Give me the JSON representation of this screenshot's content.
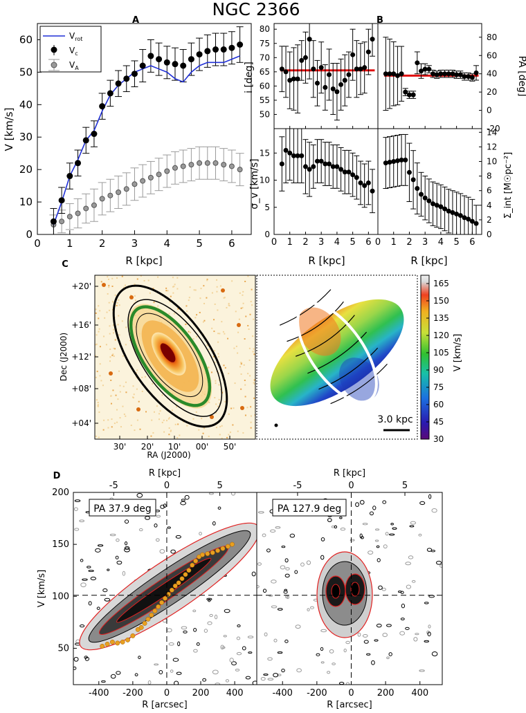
{
  "title": "NGC 2366",
  "panels": {
    "A": {
      "label": "A",
      "xlabel": "R [kpc]",
      "ylabel": "V [km/s]",
      "xlim": [
        0,
        6.6
      ],
      "ylim": [
        0,
        65
      ],
      "xticks": [
        "0",
        "1",
        "2",
        "3",
        "4",
        "5",
        "6"
      ],
      "yticks": [
        "0",
        "10",
        "20",
        "30",
        "40",
        "50",
        "60"
      ],
      "legend": {
        "v_rot": "V",
        "v_rot_sub": "rot",
        "v_c": "V",
        "v_c_sub": "c",
        "v_a": "V",
        "v_a_sub": "A"
      }
    },
    "B": {
      "label": "B",
      "xlabel": "R [kpc]",
      "incl_label": "i [deg]",
      "pa_label": "PA [deg]",
      "sigma_label": "σ_v [km/s]",
      "sigma_int_label": "Σ_int [M☉pc⁻²]",
      "xticks": [
        "0",
        "1",
        "2",
        "3",
        "4",
        "5",
        "6"
      ],
      "incl_yticks": [
        "50",
        "55",
        "60",
        "65",
        "70",
        "75",
        "80"
      ],
      "pa_yticks": [
        "-20",
        "0",
        "20",
        "40",
        "60",
        "80"
      ],
      "sigma_yticks": [
        "0",
        "5",
        "10",
        "15"
      ],
      "sigint_yticks": [
        "0",
        "2",
        "4",
        "6",
        "8",
        "10",
        "12",
        "14"
      ]
    },
    "C": {
      "label": "C",
      "xlabel": "RA (J2000)",
      "ylabel": "Dec (J2000)",
      "ra_ticks": [
        "30'",
        "20'",
        "10'",
        "00'",
        "50'"
      ],
      "dec_ticks": [
        "+20'",
        "+16'",
        "+12'",
        "+08'",
        "+04'"
      ],
      "scalebar": "3.0 kpc",
      "colorbar_label": "V [km/s]",
      "colorbar_ticks": [
        "165",
        "150",
        "135",
        "120",
        "105",
        "90",
        "75",
        "60",
        "45",
        "30"
      ]
    },
    "D": {
      "label": "D",
      "left_title": "PA 37.9 deg",
      "right_title": "PA 127.9 deg",
      "xlabel": "R [arcsec]",
      "top_xlabel": "R [kpc]",
      "ylabel": "V [km/s]",
      "xticks": [
        "-400",
        "-200",
        "0",
        "200",
        "400"
      ],
      "top_ticks": [
        "-5",
        "0",
        "5"
      ],
      "yticks": [
        "50",
        "100",
        "150",
        "200"
      ]
    }
  },
  "chart_data": [
    {
      "type": "line",
      "panel": "A",
      "title": "",
      "xlabel": "R [kpc]",
      "ylabel": "V [km/s]",
      "xlim": [
        0,
        6.6
      ],
      "ylim": [
        0,
        65
      ],
      "series": [
        {
          "name": "V_rot",
          "color": "#1f2fd6",
          "x": [
            0.5,
            0.75,
            1.0,
            1.25,
            1.5,
            1.75,
            2.0,
            2.25,
            2.5,
            2.75,
            3.0,
            3.25,
            3.5,
            3.75,
            4.0,
            4.25,
            4.5,
            4.75,
            5.0,
            5.25,
            5.5,
            5.75,
            6.0,
            6.25
          ],
          "y": [
            3,
            10,
            18,
            23,
            29,
            32,
            38,
            43,
            46,
            48,
            50,
            51,
            52,
            51,
            50,
            48,
            47,
            50,
            52,
            53,
            53,
            53,
            54,
            55
          ]
        },
        {
          "name": "V_c",
          "color": "#000000",
          "x": [
            0.5,
            0.75,
            1.0,
            1.25,
            1.5,
            1.75,
            2.0,
            2.25,
            2.5,
            2.75,
            3.0,
            3.25,
            3.5,
            3.75,
            4.0,
            4.25,
            4.5,
            4.75,
            5.0,
            5.25,
            5.5,
            5.75,
            6.0,
            6.25
          ],
          "y": [
            4,
            10.5,
            18,
            22,
            29,
            31,
            39.5,
            43.5,
            46.5,
            48,
            49.5,
            52,
            55,
            54,
            53,
            52.5,
            52,
            54,
            55.5,
            56.5,
            57,
            57,
            57.5,
            58.5
          ],
          "err": [
            4,
            4,
            4,
            4,
            4,
            4,
            4,
            4,
            4,
            4,
            4,
            5,
            5,
            5,
            5,
            5,
            5,
            5,
            5,
            5,
            5,
            5,
            5,
            5.5
          ]
        },
        {
          "name": "V_A",
          "color": "#9a9a9a",
          "x": [
            0.5,
            0.75,
            1.0,
            1.25,
            1.5,
            1.75,
            2.0,
            2.25,
            2.5,
            2.75,
            3.0,
            3.25,
            3.5,
            3.75,
            4.0,
            4.25,
            4.5,
            4.75,
            5.0,
            5.25,
            5.5,
            5.75,
            6.0,
            6.25
          ],
          "y": [
            3,
            4,
            5.5,
            6.5,
            8,
            9,
            11,
            12,
            13,
            14,
            15.5,
            16.5,
            17.5,
            18.5,
            19.5,
            20.5,
            21,
            21.5,
            22,
            22,
            22,
            21.5,
            21,
            20
          ],
          "err": [
            3,
            3.5,
            4,
            4.5,
            4.5,
            5,
            5,
            5,
            5,
            5,
            5,
            5,
            5,
            5,
            5,
            5,
            5,
            5,
            5,
            5,
            5,
            5,
            5,
            5
          ]
        }
      ]
    },
    {
      "type": "scatter",
      "panel": "B-inclination",
      "ylabel": "i [deg]",
      "xlim": [
        0,
        6.6
      ],
      "ylim": [
        45,
        82
      ],
      "fit_value": 65.5,
      "x": [
        0.5,
        0.75,
        1.0,
        1.25,
        1.5,
        1.75,
        2.0,
        2.25,
        2.5,
        2.75,
        3.0,
        3.25,
        3.5,
        3.75,
        4.0,
        4.25,
        4.5,
        4.75,
        5.0,
        5.25,
        5.5,
        5.75,
        6.0,
        6.25
      ],
      "y": [
        66,
        65,
        62,
        62.5,
        62.5,
        69,
        70,
        76.5,
        66,
        61,
        66.5,
        59.5,
        64,
        59,
        58,
        60.5,
        62,
        64,
        71,
        66,
        66,
        66.5,
        72,
        76.5
      ],
      "err": [
        8,
        9,
        10,
        11,
        12,
        7,
        9,
        14,
        10,
        8,
        9,
        8,
        9,
        9,
        10,
        9,
        9,
        8,
        9,
        10,
        9,
        9,
        8,
        6
      ]
    },
    {
      "type": "scatter",
      "panel": "B-position-angle",
      "ylabel": "PA [deg]",
      "xlim": [
        0,
        6.6
      ],
      "ylim": [
        -20,
        95
      ],
      "fit_value": 38,
      "x": [
        0.5,
        0.75,
        1.0,
        1.25,
        1.5,
        1.75,
        2.0,
        2.25,
        2.5,
        2.75,
        3.0,
        3.25,
        3.5,
        3.75,
        4.0,
        4.25,
        4.5,
        4.75,
        5.0,
        5.25,
        5.5,
        5.75,
        6.0,
        6.25
      ],
      "y": [
        40,
        40,
        40,
        38,
        40,
        20,
        17,
        17,
        52,
        43,
        45,
        45,
        40,
        39,
        40,
        40,
        40,
        40,
        39,
        39,
        37,
        37,
        36,
        41
      ],
      "err": [
        40,
        38,
        35,
        32,
        30,
        4,
        4,
        4,
        12,
        8,
        6,
        4,
        4,
        4,
        4,
        4,
        4,
        4,
        4,
        4,
        4,
        4,
        4,
        8
      ]
    },
    {
      "type": "scatter",
      "panel": "B-dispersion",
      "ylabel": "σ_v [km/s]",
      "xlim": [
        0,
        6.6
      ],
      "ylim": [
        0,
        19.5
      ],
      "x": [
        0.5,
        0.75,
        1.0,
        1.25,
        1.5,
        1.75,
        2.0,
        2.25,
        2.5,
        2.75,
        3.0,
        3.25,
        3.5,
        3.75,
        4.0,
        4.25,
        4.5,
        4.75,
        5.0,
        5.25,
        5.5,
        5.75,
        6.0,
        6.25
      ],
      "y": [
        13,
        15.5,
        15,
        14.5,
        14.5,
        14.5,
        12.5,
        12,
        12.5,
        13.5,
        13.5,
        13,
        13,
        12.5,
        12.5,
        12,
        11.5,
        11.5,
        11,
        10.5,
        9.5,
        9,
        9.5,
        8
      ],
      "err": [
        5,
        6,
        5,
        5,
        5,
        5,
        5,
        5,
        4,
        4,
        4,
        4,
        4,
        4,
        4,
        4,
        4,
        4,
        4,
        4,
        4,
        4,
        4,
        4
      ]
    },
    {
      "type": "scatter",
      "panel": "B-surface-density",
      "ylabel": "Σ_int [M☉pc⁻²]",
      "xlim": [
        0,
        6.6
      ],
      "ylim": [
        0,
        14.5
      ],
      "x": [
        0.5,
        0.75,
        1.0,
        1.25,
        1.5,
        1.75,
        2.0,
        2.25,
        2.5,
        2.75,
        3.0,
        3.25,
        3.5,
        3.75,
        4.0,
        4.25,
        4.5,
        4.75,
        5.0,
        5.25,
        5.5,
        5.75,
        6.0,
        6.25
      ],
      "y": [
        9.8,
        9.9,
        10,
        10.1,
        10.2,
        10.2,
        8.5,
        7.5,
        6.3,
        5.5,
        5,
        4.6,
        4.2,
        4,
        3.8,
        3.5,
        3.2,
        3,
        2.8,
        2.6,
        2.3,
        2.1,
        1.8,
        1.5
      ],
      "err": [
        3.5,
        3.5,
        3.5,
        3.5,
        3.5,
        3.5,
        4,
        4,
        3.5,
        3,
        3,
        3,
        3,
        3,
        3,
        3,
        3,
        3,
        3,
        3,
        3,
        3,
        3,
        2.5
      ]
    },
    {
      "type": "line",
      "panel": "D-left",
      "title": "PA 37.9 deg",
      "xlabel": "R [arcsec]",
      "ylabel": "V [km/s]",
      "xlim": [
        -550,
        530
      ],
      "ylim": [
        15,
        200
      ],
      "series": [
        {
          "name": "rotation-curve-points",
          "color": "#e8a020",
          "x": [
            -380,
            -350,
            -320,
            -290,
            -260,
            -230,
            -200,
            -170,
            -150,
            -130,
            -110,
            -90,
            -70,
            -50,
            -30,
            -10,
            10,
            30,
            50,
            70,
            90,
            110,
            130,
            150,
            170,
            190,
            210,
            240,
            270,
            300,
            330,
            360,
            385
          ],
          "y": [
            52,
            54,
            56,
            55,
            56,
            58,
            62,
            68,
            70,
            74,
            78,
            82,
            86,
            90,
            94,
            98,
            102,
            106,
            110,
            113,
            117,
            121,
            125,
            130,
            134,
            138,
            140,
            141,
            142,
            144,
            146,
            148,
            150
          ]
        }
      ]
    }
  ]
}
